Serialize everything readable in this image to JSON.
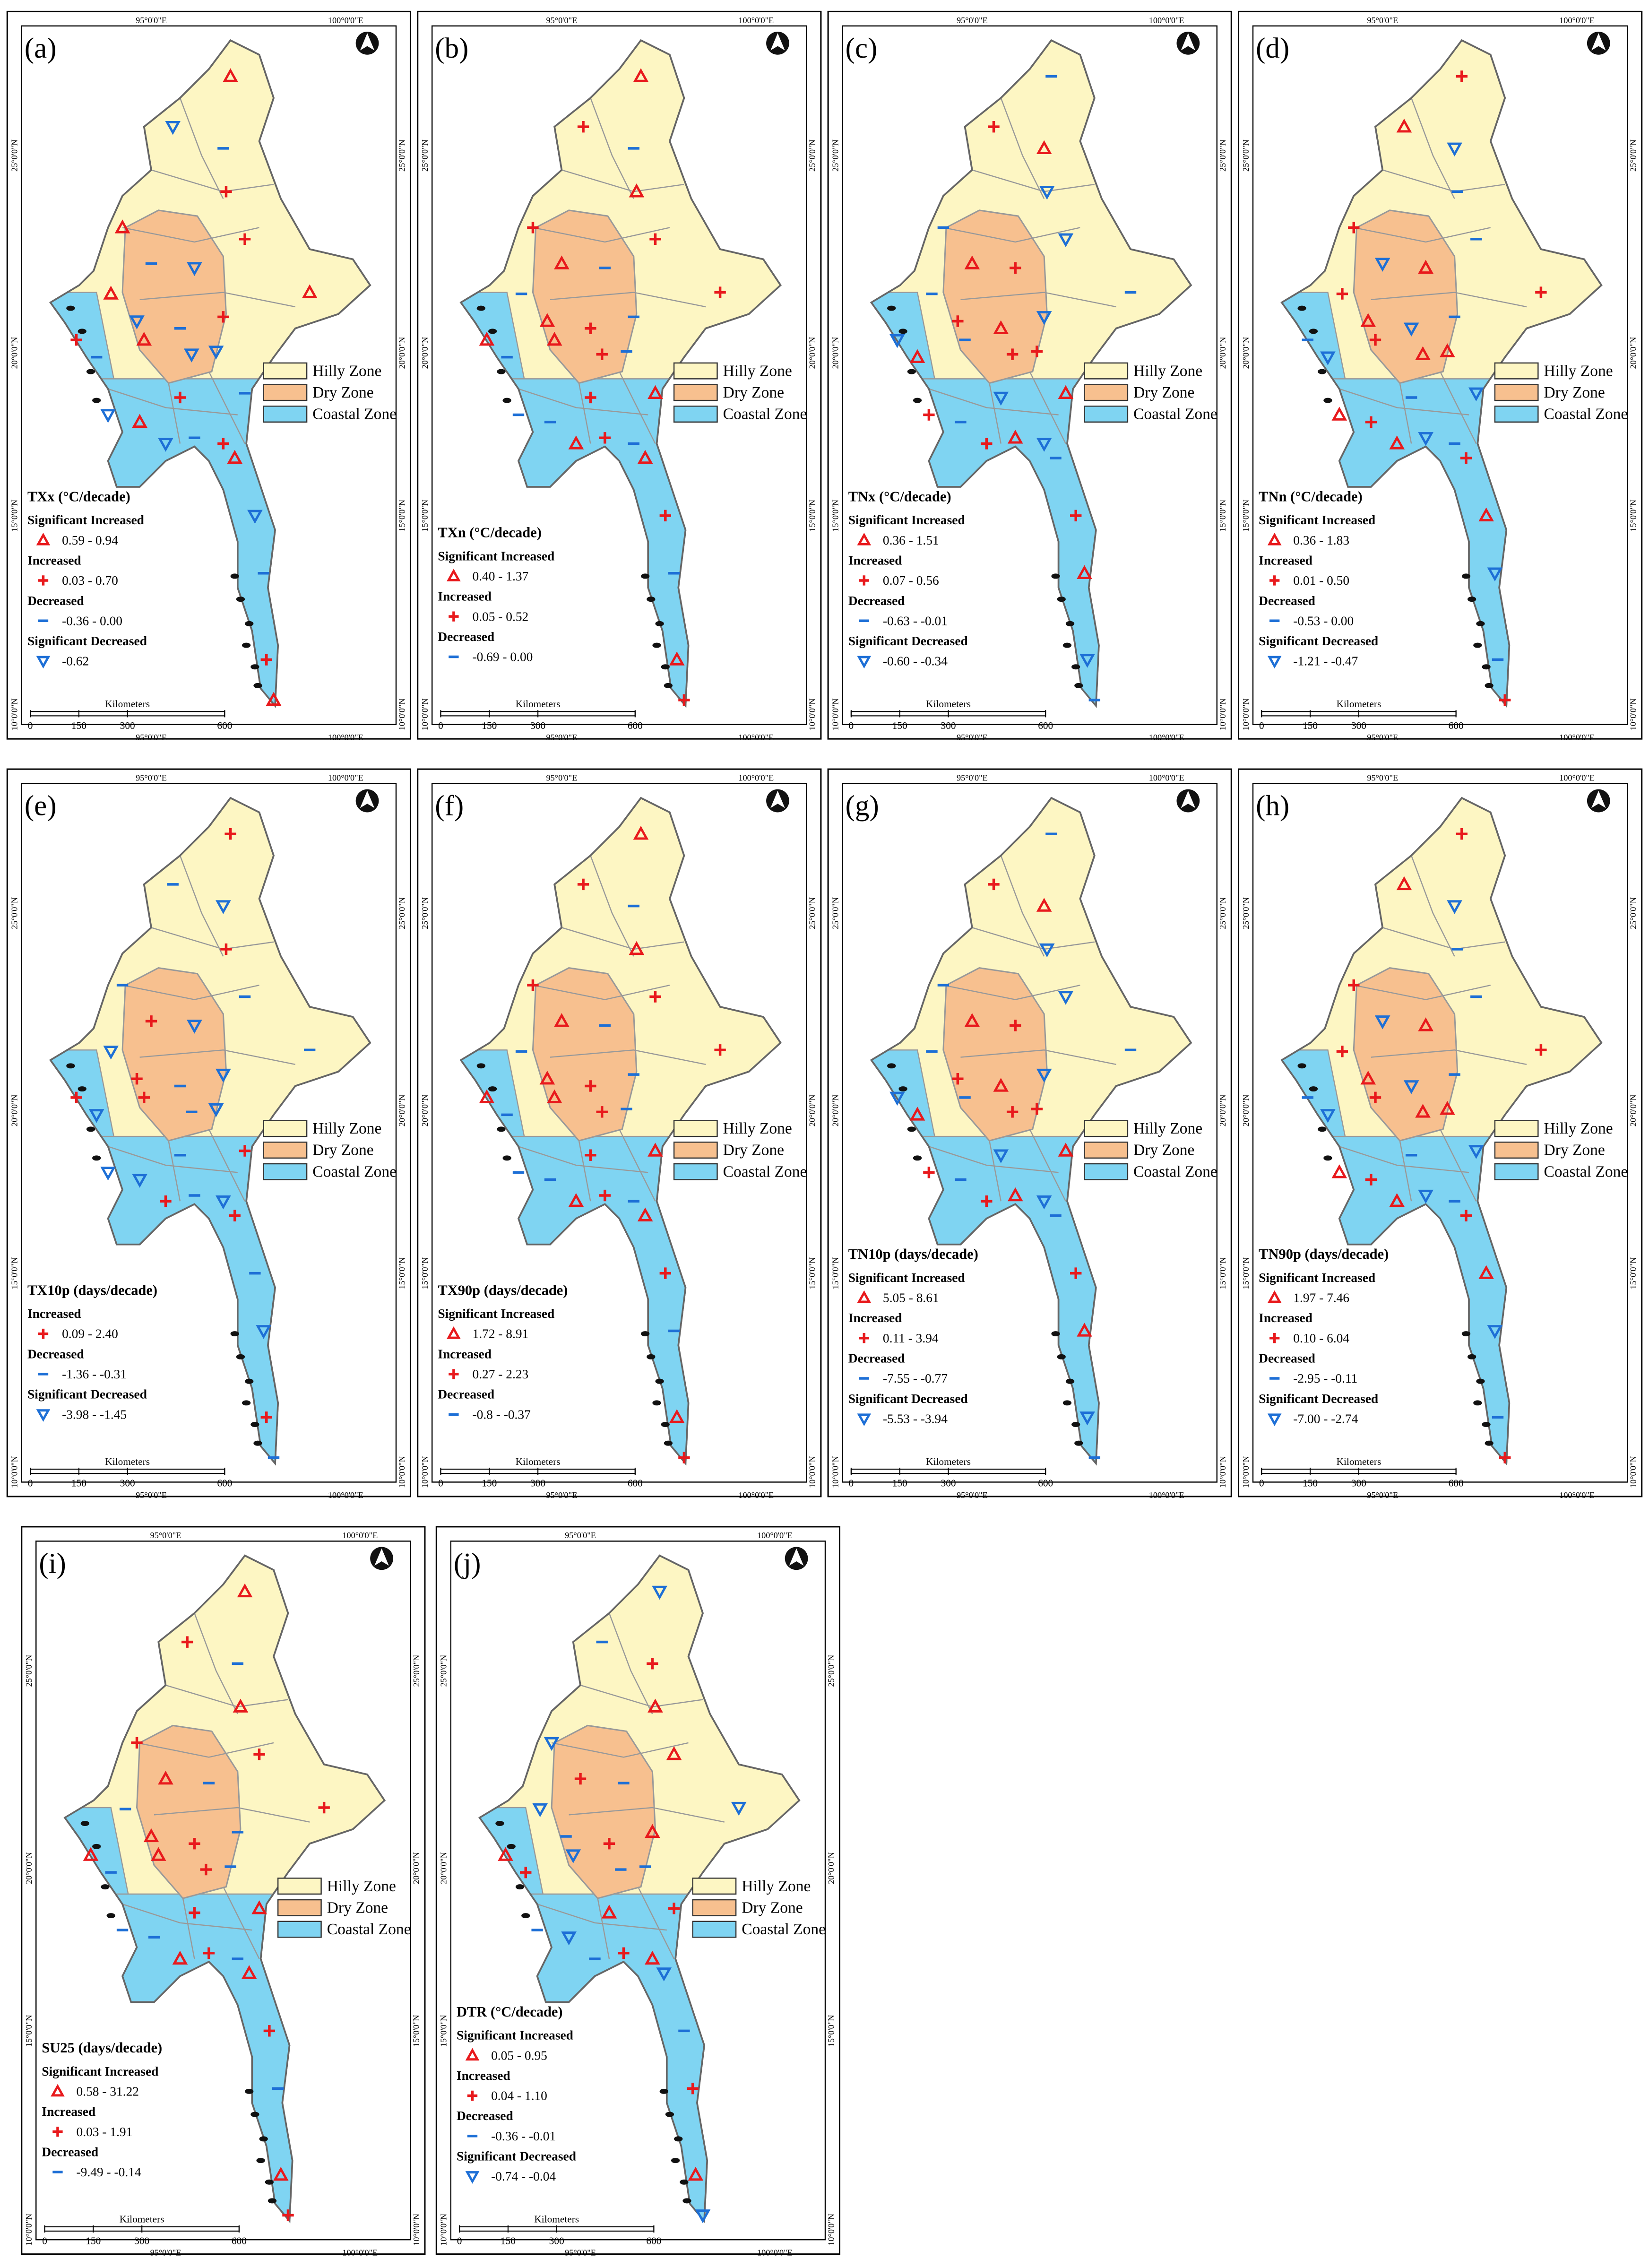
{
  "panels": [
    {
      "label": "(a)",
      "index": "TXx (°C/decade)",
      "classes": [
        {
          "name": "Significant Increased",
          "range": "0.59 - 0.94",
          "marker": "triangle-up",
          "color": "#e8191c"
        },
        {
          "name": "Increased",
          "range": "0.03 - 0.70",
          "marker": "plus",
          "color": "#e8191c"
        },
        {
          "name": "Decreased",
          "range": "-0.36 - 0.00",
          "marker": "minus",
          "color": "#1d6fd6"
        },
        {
          "name": "Significant Decreased",
          "range": "-0.62",
          "marker": "triangle-down",
          "color": "#1d6fd6"
        }
      ]
    },
    {
      "label": "(b)",
      "index": "TXn (°C/decade)",
      "classes": [
        {
          "name": "Significant Increased",
          "range": "0.40 - 1.37",
          "marker": "triangle-up",
          "color": "#e8191c"
        },
        {
          "name": "Increased",
          "range": "0.05 - 0.52",
          "marker": "plus",
          "color": "#e8191c"
        },
        {
          "name": "Decreased",
          "range": "-0.69 - 0.00",
          "marker": "minus",
          "color": "#1d6fd6"
        }
      ]
    },
    {
      "label": "(c)",
      "index": "TNx (°C/decade)",
      "classes": [
        {
          "name": "Significant Increased",
          "range": "0.36 - 1.51",
          "marker": "triangle-up",
          "color": "#e8191c"
        },
        {
          "name": "Increased",
          "range": "0.07 - 0.56",
          "marker": "plus",
          "color": "#e8191c"
        },
        {
          "name": "Decreased",
          "range": "-0.63 - -0.01",
          "marker": "minus",
          "color": "#1d6fd6"
        },
        {
          "name": "Significant Decreased",
          "range": "-0.60 - -0.34",
          "marker": "triangle-down",
          "color": "#1d6fd6"
        }
      ]
    },
    {
      "label": "(d)",
      "index": "TNn (°C/decade)",
      "classes": [
        {
          "name": "Significant Increased",
          "range": "0.36 - 1.83",
          "marker": "triangle-up",
          "color": "#e8191c"
        },
        {
          "name": "Increased",
          "range": "0.01 - 0.50",
          "marker": "plus",
          "color": "#e8191c"
        },
        {
          "name": "Decreased",
          "range": "-0.53 - 0.00",
          "marker": "minus",
          "color": "#1d6fd6"
        },
        {
          "name": "Significant Decreased",
          "range": "-1.21 - -0.47",
          "marker": "triangle-down",
          "color": "#1d6fd6"
        }
      ]
    },
    {
      "label": "(e)",
      "index": "TX10p (days/decade)",
      "classes": [
        {
          "name": "Increased",
          "range": "0.09 - 2.40",
          "marker": "plus",
          "color": "#e8191c"
        },
        {
          "name": "Decreased",
          "range": "-1.36 - -0.31",
          "marker": "minus",
          "color": "#1d6fd6"
        },
        {
          "name": "Significant Decreased",
          "range": "-3.98 - -1.45",
          "marker": "triangle-down",
          "color": "#1d6fd6"
        }
      ]
    },
    {
      "label": "(f)",
      "index": "TX90p (days/decade)",
      "classes": [
        {
          "name": "Significant Increased",
          "range": "1.72 - 8.91",
          "marker": "triangle-up",
          "color": "#e8191c"
        },
        {
          "name": "Increased",
          "range": "0.27 - 2.23",
          "marker": "plus",
          "color": "#e8191c"
        },
        {
          "name": "Decreased",
          "range": "-0.8 - -0.37",
          "marker": "minus",
          "color": "#1d6fd6"
        }
      ]
    },
    {
      "label": "(g)",
      "index": "TN10p (days/decade)",
      "classes": [
        {
          "name": "Significant Increased",
          "range": "5.05 - 8.61",
          "marker": "triangle-up",
          "color": "#e8191c"
        },
        {
          "name": "Increased",
          "range": "0.11 - 3.94",
          "marker": "plus",
          "color": "#e8191c"
        },
        {
          "name": "Decreased",
          "range": "-7.55 - -0.77",
          "marker": "minus",
          "color": "#1d6fd6"
        },
        {
          "name": "Significant Decreased",
          "range": "-5.53 - -3.94",
          "marker": "triangle-down",
          "color": "#1d6fd6"
        }
      ]
    },
    {
      "label": "(h)",
      "index": "TN90p (days/decade)",
      "classes": [
        {
          "name": "Significant Increased",
          "range": "1.97 - 7.46",
          "marker": "triangle-up",
          "color": "#e8191c"
        },
        {
          "name": "Increased",
          "range": "0.10 - 6.04",
          "marker": "plus",
          "color": "#e8191c"
        },
        {
          "name": "Decreased",
          "range": "-2.95 - -0.11",
          "marker": "minus",
          "color": "#1d6fd6"
        },
        {
          "name": "Significant Decreased",
          "range": "-7.00 - -2.74",
          "marker": "triangle-down",
          "color": "#1d6fd6"
        }
      ]
    },
    {
      "label": "(i)",
      "index": "SU25 (days/decade)",
      "classes": [
        {
          "name": "Significant Increased",
          "range": "0.58 - 31.22",
          "marker": "triangle-up",
          "color": "#e8191c"
        },
        {
          "name": "Increased",
          "range": "0.03 - 1.91",
          "marker": "plus",
          "color": "#e8191c"
        },
        {
          "name": "Decreased",
          "range": "-9.49 - -0.14",
          "marker": "minus",
          "color": "#1d6fd6"
        }
      ]
    },
    {
      "label": "(j)",
      "index": "DTR (°C/decade)",
      "classes": [
        {
          "name": "Significant Increased",
          "range": "0.05 - 0.95",
          "marker": "triangle-up",
          "color": "#e8191c"
        },
        {
          "name": "Increased",
          "range": "0.04 - 1.10",
          "marker": "plus",
          "color": "#e8191c"
        },
        {
          "name": "Decreased",
          "range": "-0.36 - -0.01",
          "marker": "minus",
          "color": "#1d6fd6"
        },
        {
          "name": "Significant Decreased",
          "range": "-0.74 - -0.04",
          "marker": "triangle-down",
          "color": "#1d6fd6"
        }
      ]
    }
  ],
  "zones": [
    {
      "name": "Hilly Zone",
      "color": "#fdf6c3"
    },
    {
      "name": "Dry Zone",
      "color": "#f7c08f"
    },
    {
      "name": "Coastal Zone",
      "color": "#7fd4f2"
    }
  ],
  "axes": {
    "lon": [
      "95°0'0\"E",
      "100°0'0\"E"
    ],
    "lat": [
      "25°0'0\"N",
      "20°0'0\"N",
      "15°0'0\"N",
      "10°0'0\"N"
    ]
  },
  "scale": {
    "ticks": [
      0,
      150,
      300,
      600
    ],
    "unit": "Kilometers"
  }
}
